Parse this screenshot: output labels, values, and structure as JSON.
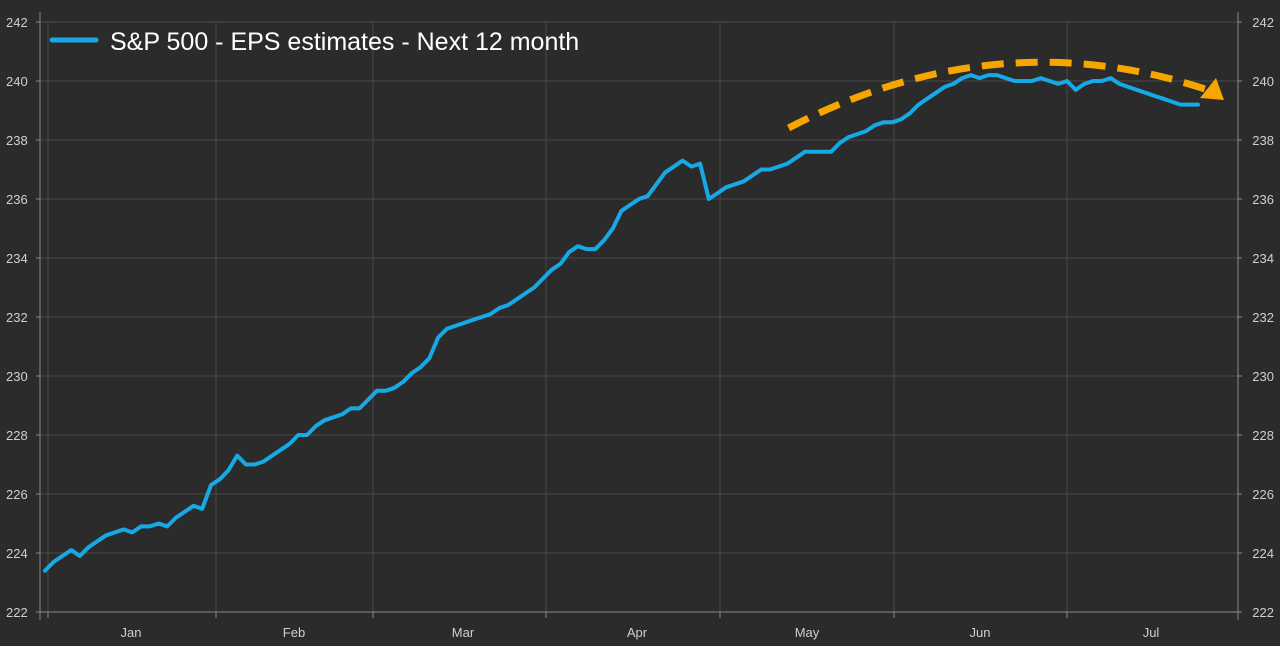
{
  "chart_data": {
    "type": "line",
    "title": "",
    "xlabel": "",
    "ylabel": "",
    "ylim": [
      222,
      242
    ],
    "y_ticks": [
      222,
      224,
      226,
      228,
      230,
      232,
      234,
      236,
      238,
      240,
      242
    ],
    "y_axis_sides": "left-and-right",
    "months": [
      "Jan",
      "Feb",
      "Mar",
      "Apr",
      "May",
      "Jun",
      "Jul"
    ],
    "grid": true,
    "legend": {
      "position": "top-left",
      "entries": [
        "S&P 500 - EPS estimates - Next 12 month"
      ]
    },
    "series": [
      {
        "name": "S&P 500 - EPS estimates - Next 12 month",
        "color": "#17a9e6",
        "values": [
          223.4,
          223.7,
          223.9,
          224.1,
          223.9,
          224.2,
          224.4,
          224.6,
          224.7,
          224.8,
          224.7,
          224.9,
          224.9,
          225.0,
          224.9,
          225.2,
          225.4,
          225.6,
          225.5,
          226.3,
          226.5,
          226.8,
          227.3,
          227.0,
          227.0,
          227.1,
          227.3,
          227.5,
          227.7,
          228.0,
          228.0,
          228.3,
          228.5,
          228.6,
          228.7,
          228.9,
          228.9,
          229.2,
          229.5,
          229.5,
          229.6,
          229.8,
          230.1,
          230.3,
          230.6,
          231.3,
          231.6,
          231.7,
          231.8,
          231.9,
          232.0,
          232.1,
          232.3,
          232.4,
          232.6,
          232.8,
          233.0,
          233.3,
          233.6,
          233.8,
          234.2,
          234.4,
          234.3,
          234.3,
          234.6,
          235.0,
          235.6,
          235.8,
          236.0,
          236.1,
          236.5,
          236.9,
          237.1,
          237.3,
          237.1,
          237.2,
          236.0,
          236.2,
          236.4,
          236.5,
          236.6,
          236.8,
          237.0,
          237.0,
          237.1,
          237.2,
          237.4,
          237.6,
          237.6,
          237.6,
          237.6,
          237.9,
          238.1,
          238.2,
          238.3,
          238.5,
          238.6,
          238.6,
          238.7,
          238.9,
          239.2,
          239.4,
          239.6,
          239.8,
          239.9,
          240.1,
          240.2,
          240.1,
          240.2,
          240.2,
          240.1,
          240.0,
          240.0,
          240.0,
          240.1,
          240.0,
          239.9,
          240.0,
          239.7,
          239.9,
          240.0,
          240.0,
          240.1,
          239.9,
          239.8,
          239.7,
          239.6,
          239.5,
          239.4,
          239.3,
          239.2,
          239.2,
          239.2
        ]
      }
    ],
    "annotation": {
      "shape": "dashed-curved-arrow-down-right",
      "color": "#f7a600",
      "from_index": 92,
      "to_index": 133
    }
  }
}
